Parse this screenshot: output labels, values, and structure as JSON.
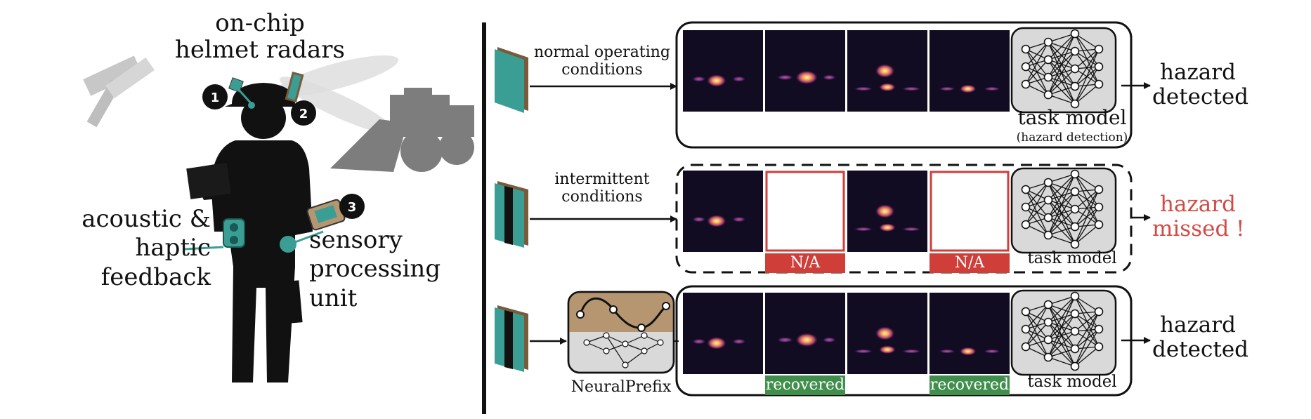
{
  "left_panel": {
    "radar_title": [
      "on-chip",
      "helmet radars"
    ],
    "badges": [
      "1",
      "2",
      "3"
    ],
    "feedback_label": [
      "acoustic &",
      "haptic",
      "feedback"
    ],
    "processing_label": [
      "sensory",
      "processing",
      "unit"
    ]
  },
  "rows": [
    {
      "condition": [
        "normal operating",
        "conditions"
      ],
      "model_label": "task model",
      "model_sublabel": "(hazard detection)",
      "outcome": [
        "hazard",
        "detected"
      ],
      "frames": [
        "frame",
        "frame",
        "frame",
        "frame"
      ]
    },
    {
      "condition": [
        "intermittent",
        "conditions"
      ],
      "model_label": "task model",
      "outcome": [
        "hazard",
        "missed !"
      ],
      "frames": [
        "frame",
        "N/A",
        "frame",
        "N/A"
      ]
    },
    {
      "prefix_label": "NeuralPrefix",
      "model_label": "task model",
      "outcome": [
        "hazard",
        "detected"
      ],
      "frames": [
        "frame",
        "recovered",
        "frame",
        "recovered"
      ]
    }
  ],
  "colors": {
    "accent_teal": "#3a9e94",
    "missed_red": "#d24b45",
    "na_red": "#cf3e39",
    "recovered_green": "#3f8e4b",
    "prefix_tan": "#b59670",
    "model_gray": "#d9d9d9"
  }
}
